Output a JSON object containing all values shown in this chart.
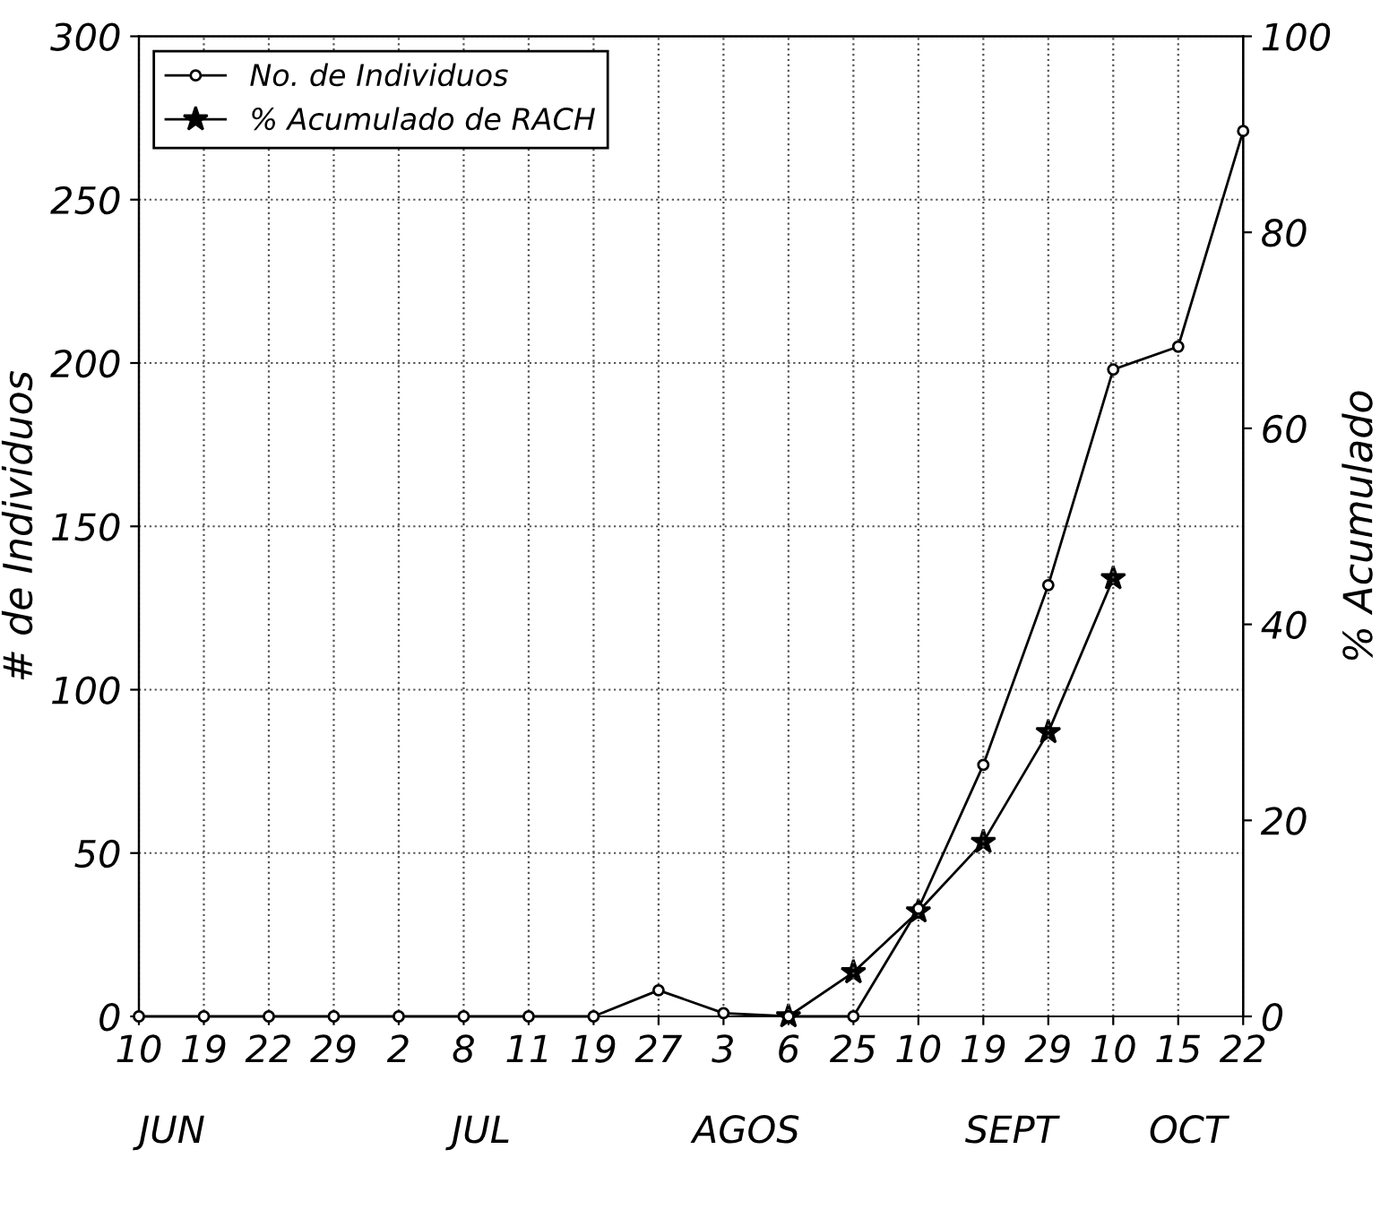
{
  "chart_data": {
    "type": "line",
    "ylabel": "# de Individuos",
    "y2label": "% Acumulado",
    "categories": [
      "10",
      "19",
      "22",
      "29",
      "2",
      "8",
      "11",
      "19",
      "27",
      "3",
      "6",
      "25",
      "10",
      "19",
      "29",
      "10",
      "15",
      "22"
    ],
    "series": [
      {
        "name": "No. de Individuos",
        "color": "#000000",
        "marker": "circle",
        "values": [
          0,
          0,
          0,
          0,
          0,
          0,
          0,
          0,
          8,
          1,
          0,
          0,
          33,
          77,
          132,
          198,
          205,
          271
        ]
      },
      {
        "name": "% Acumulado de RACH",
        "color": "#000000",
        "marker": "star",
        "axis": "y2",
        "values": [
          null,
          null,
          null,
          null,
          null,
          null,
          null,
          null,
          null,
          null,
          0,
          4.5,
          10.7,
          17.8,
          29,
          44.7,
          null,
          null
        ]
      }
    ],
    "ylim": [
      0,
      300
    ],
    "yticks": [
      0,
      50,
      100,
      150,
      200,
      250,
      300
    ],
    "y2lim": [
      0,
      100
    ],
    "y2ticks": [
      0,
      20,
      40,
      60,
      80,
      100
    ],
    "grid": true,
    "legend": "top left",
    "line_style": "solid",
    "annotations": [
      "JUN",
      "JUL",
      "AGOS",
      "SEPT",
      "OCT"
    ]
  }
}
